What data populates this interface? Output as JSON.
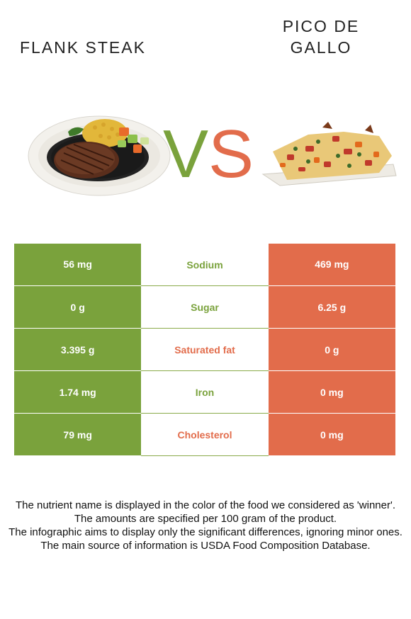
{
  "foods": {
    "left": {
      "name": "FLANK STEAK"
    },
    "right": {
      "name": "PICO DE GALLO"
    }
  },
  "vs": {
    "v": "V",
    "s": "S"
  },
  "colors": {
    "left_food": "#7aa23c",
    "right_food": "#e26c4b",
    "text": "#222222"
  },
  "rows": [
    {
      "nutrient": "Sodium",
      "left": "56 mg",
      "right": "469 mg",
      "winner": "left"
    },
    {
      "nutrient": "Sugar",
      "left": "0 g",
      "right": "6.25 g",
      "winner": "left"
    },
    {
      "nutrient": "Saturated fat",
      "left": "3.395 g",
      "right": "0 g",
      "winner": "right"
    },
    {
      "nutrient": "Iron",
      "left": "1.74 mg",
      "right": "0 mg",
      "winner": "left"
    },
    {
      "nutrient": "Cholesterol",
      "left": "79 mg",
      "right": "0 mg",
      "winner": "right"
    }
  ],
  "footer": [
    "The nutrient name is displayed in the color of the food we considered as 'winner'.",
    "The amounts are specified per 100 gram of the product.",
    "The infographic aims to display only the significant differences, ignoring minor ones.",
    "The main source of information is USDA Food Composition Database."
  ]
}
